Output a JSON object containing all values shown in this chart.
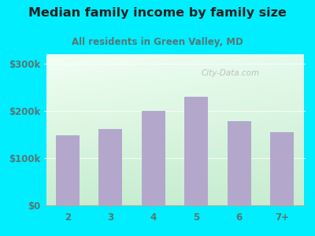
{
  "title": "Median family income by family size",
  "subtitle": "All residents in Green Valley, MD",
  "categories": [
    "2",
    "3",
    "4",
    "5",
    "6",
    "7+"
  ],
  "values": [
    148000,
    162000,
    200000,
    230000,
    178000,
    155000
  ],
  "bar_color": "#b3a8cc",
  "bg_outer": "#00eeff",
  "ylim": [
    0,
    320000
  ],
  "yticks": [
    0,
    100000,
    200000,
    300000
  ],
  "ytick_labels": [
    "$0",
    "$100k",
    "$200k",
    "$300k"
  ],
  "title_fontsize": 11.5,
  "subtitle_fontsize": 8.5,
  "title_color": "#222222",
  "tick_color": "#557777",
  "watermark": "City-Data.com"
}
